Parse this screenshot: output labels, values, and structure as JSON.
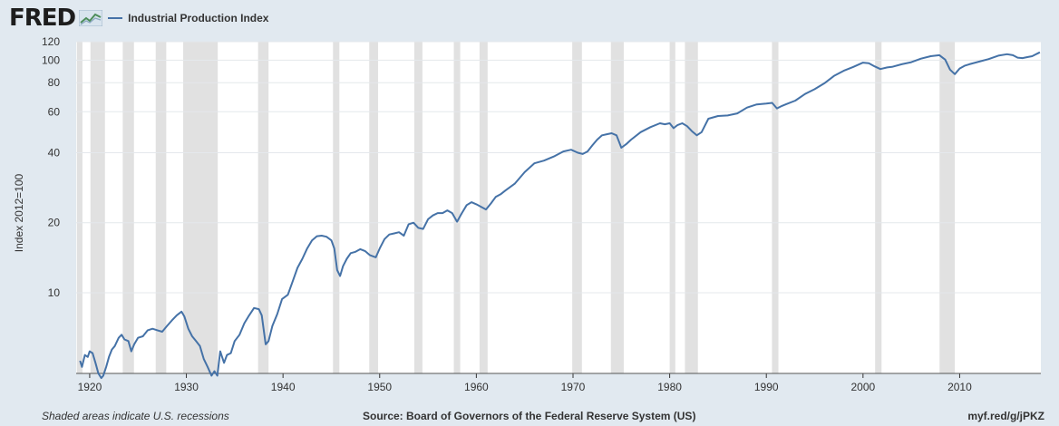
{
  "header": {
    "logo": "FRED",
    "logo_icon": "line-chart-icon",
    "legend_label": "Industrial Production Index"
  },
  "footer": {
    "left": "Shaded areas indicate U.S. recessions",
    "source": "Source: Board of Governors of the Federal Reserve System (US)",
    "url": "myf.red/g/jPKZ"
  },
  "colors": {
    "background": "#e1e9f0",
    "plot_background": "#ffffff",
    "line": "#4572a7",
    "recession": "#e1e1e1",
    "gridline": "#e4e8ec"
  },
  "chart_data": {
    "type": "line",
    "title": "",
    "xlabel": "",
    "ylabel": "Index 2012=100",
    "y_scale": "log",
    "xlim": [
      1918.6,
      2018.4
    ],
    "ylim": [
      4.5,
      120
    ],
    "grid": true,
    "legend_position": "top-left",
    "y_ticks": [
      10,
      20,
      40,
      60,
      80,
      100,
      120
    ],
    "x_ticks": [
      1920,
      1930,
      1940,
      1950,
      1960,
      1970,
      1980,
      1990,
      2000,
      2010
    ],
    "recessions": [
      [
        1918.67,
        1919.25
      ],
      [
        1920.08,
        1921.58
      ],
      [
        1923.42,
        1924.58
      ],
      [
        1926.83,
        1927.92
      ],
      [
        1929.67,
        1933.25
      ],
      [
        1937.42,
        1938.5
      ],
      [
        1945.17,
        1945.83
      ],
      [
        1948.92,
        1949.83
      ],
      [
        1953.58,
        1954.42
      ],
      [
        1957.67,
        1958.33
      ],
      [
        1960.33,
        1961.17
      ],
      [
        1969.92,
        1970.92
      ],
      [
        1973.92,
        1975.25
      ],
      [
        1980.0,
        1980.58
      ],
      [
        1981.58,
        1982.92
      ],
      [
        1990.58,
        1991.25
      ],
      [
        2001.25,
        2001.92
      ],
      [
        2007.92,
        2009.5
      ]
    ],
    "series": [
      {
        "name": "Industrial Production Index",
        "x": [
          1919.0,
          1919.2,
          1919.5,
          1919.8,
          1920.0,
          1920.3,
          1920.6,
          1920.9,
          1921.2,
          1921.4,
          1921.7,
          1922.0,
          1922.3,
          1922.6,
          1923.0,
          1923.3,
          1923.6,
          1924.0,
          1924.3,
          1924.6,
          1925.0,
          1925.5,
          1926.0,
          1926.5,
          1927.0,
          1927.5,
          1928.0,
          1928.5,
          1929.0,
          1929.5,
          1929.8,
          1930.2,
          1930.6,
          1931.0,
          1931.4,
          1931.8,
          1932.2,
          1932.6,
          1932.9,
          1933.2,
          1933.5,
          1933.9,
          1934.2,
          1934.6,
          1935.0,
          1935.5,
          1936.0,
          1936.5,
          1937.0,
          1937.5,
          1937.8,
          1938.2,
          1938.5,
          1938.9,
          1939.4,
          1939.9,
          1940.5,
          1941.0,
          1941.5,
          1942.0,
          1942.5,
          1943.0,
          1943.5,
          1944.0,
          1944.5,
          1945.0,
          1945.3,
          1945.6,
          1945.9,
          1946.2,
          1946.6,
          1947.0,
          1947.5,
          1948.0,
          1948.5,
          1949.0,
          1949.6,
          1950.0,
          1950.5,
          1951.0,
          1951.5,
          1952.0,
          1952.5,
          1953.0,
          1953.5,
          1954.0,
          1954.5,
          1955.0,
          1955.5,
          1956.0,
          1956.5,
          1957.0,
          1957.5,
          1958.0,
          1958.5,
          1959.0,
          1959.5,
          1960.0,
          1960.5,
          1961.0,
          1961.5,
          1962.0,
          1962.5,
          1963.0,
          1964.0,
          1965.0,
          1966.0,
          1967.0,
          1968.0,
          1969.0,
          1969.8,
          1970.5,
          1971.0,
          1971.5,
          1972.0,
          1972.5,
          1973.0,
          1973.5,
          1974.0,
          1974.5,
          1975.0,
          1975.5,
          1976.0,
          1977.0,
          1978.0,
          1979.0,
          1979.5,
          1980.0,
          1980.4,
          1980.8,
          1981.3,
          1981.8,
          1982.3,
          1982.8,
          1983.3,
          1984.0,
          1985.0,
          1986.0,
          1987.0,
          1988.0,
          1989.0,
          1990.0,
          1990.6,
          1991.1,
          1991.6,
          1992.0,
          1993.0,
          1994.0,
          1995.0,
          1996.0,
          1997.0,
          1998.0,
          1999.0,
          2000.0,
          2000.6,
          2001.2,
          2001.8,
          2002.5,
          2003.0,
          2004.0,
          2005.0,
          2006.0,
          2007.0,
          2007.9,
          2008.5,
          2009.0,
          2009.5,
          2010.0,
          2010.5,
          2011.0,
          2012.0,
          2013.0,
          2014.0,
          2014.9,
          2015.5,
          2016.0,
          2016.5,
          2017.0,
          2017.5,
          2018.0,
          2018.3
        ],
        "values": [
          5.1,
          4.8,
          5.4,
          5.3,
          5.6,
          5.5,
          5.0,
          4.5,
          4.3,
          4.4,
          4.8,
          5.3,
          5.7,
          5.9,
          6.4,
          6.6,
          6.3,
          6.2,
          5.6,
          6.0,
          6.4,
          6.5,
          6.9,
          7.0,
          6.9,
          6.8,
          7.2,
          7.6,
          8.0,
          8.3,
          7.9,
          7.0,
          6.5,
          6.2,
          5.9,
          5.2,
          4.8,
          4.4,
          4.6,
          4.4,
          5.6,
          5.0,
          5.4,
          5.5,
          6.2,
          6.6,
          7.4,
          8.0,
          8.6,
          8.5,
          8.0,
          6.0,
          6.2,
          7.2,
          8.1,
          9.4,
          9.8,
          11.2,
          12.8,
          14.0,
          15.5,
          16.8,
          17.5,
          17.6,
          17.4,
          16.8,
          15.5,
          12.5,
          11.8,
          13.0,
          14.0,
          14.8,
          15.0,
          15.4,
          15.1,
          14.5,
          14.2,
          15.5,
          17.0,
          17.8,
          18.0,
          18.2,
          17.6,
          19.7,
          20.0,
          19.0,
          18.8,
          20.7,
          21.5,
          22.0,
          22.0,
          22.6,
          22.0,
          20.2,
          22.0,
          23.8,
          24.5,
          24.0,
          23.4,
          22.8,
          24.2,
          25.8,
          26.5,
          27.5,
          29.5,
          33.0,
          36.0,
          37.0,
          38.5,
          40.5,
          41.2,
          40.0,
          39.5,
          40.5,
          43.0,
          45.5,
          47.5,
          48.0,
          48.5,
          47.5,
          42.0,
          43.5,
          45.5,
          49.0,
          51.5,
          53.5,
          53.0,
          53.5,
          51.0,
          52.5,
          53.5,
          52.0,
          49.5,
          47.5,
          49.0,
          56.0,
          57.5,
          57.8,
          59.0,
          62.5,
          64.5,
          65.0,
          65.5,
          62.0,
          63.5,
          64.5,
          67.0,
          71.5,
          75.0,
          79.5,
          85.5,
          90.0,
          93.5,
          97.5,
          97.0,
          94.0,
          91.5,
          93.0,
          93.5,
          96.0,
          98.0,
          101.5,
          104.0,
          105.0,
          100.5,
          91.0,
          87.0,
          92.0,
          94.5,
          96.0,
          98.5,
          101.0,
          104.5,
          106.0,
          105.0,
          102.5,
          102.0,
          103.0,
          104.0,
          106.5,
          108.0
        ]
      }
    ]
  }
}
